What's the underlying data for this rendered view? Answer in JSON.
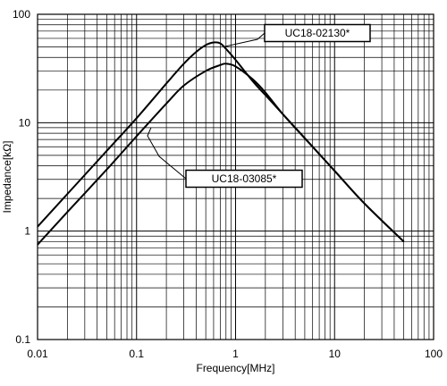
{
  "chart_data": {
    "type": "line",
    "xlabel": "Frequency[MHz]",
    "ylabel": "Impedance[kΩ]",
    "xscale": "log",
    "yscale": "log",
    "xlim": [
      0.01,
      100
    ],
    "ylim": [
      0.1,
      100
    ],
    "grid": true,
    "xticks": [
      {
        "value": 0.01,
        "label": "0.01"
      },
      {
        "value": 0.1,
        "label": "0.1"
      },
      {
        "value": 1,
        "label": "1"
      },
      {
        "value": 10,
        "label": "10"
      },
      {
        "value": 100,
        "label": "100"
      }
    ],
    "yticks": [
      {
        "value": 0.1,
        "label": "0.1"
      },
      {
        "value": 1,
        "label": "1"
      },
      {
        "value": 10,
        "label": "10"
      },
      {
        "value": 100,
        "label": "100"
      }
    ],
    "series": [
      {
        "name": "UC18-02130*",
        "x": [
          0.01,
          0.02,
          0.05,
          0.1,
          0.2,
          0.3,
          0.4,
          0.5,
          0.6,
          0.7,
          0.8,
          1,
          1.5,
          2,
          3,
          5,
          10,
          20,
          50
        ],
        "y": [
          1.1,
          2.2,
          5.5,
          11,
          23,
          35,
          45,
          52,
          55,
          54,
          48,
          38,
          24,
          18,
          12,
          7.2,
          3.6,
          1.8,
          0.8
        ]
      },
      {
        "name": "UC18-03085*",
        "x": [
          0.01,
          0.02,
          0.05,
          0.1,
          0.2,
          0.3,
          0.5,
          0.7,
          0.8,
          1,
          1.5,
          2,
          3,
          5,
          10,
          20,
          50
        ],
        "y": [
          0.75,
          1.5,
          3.7,
          7.5,
          15,
          22,
          30,
          34,
          35,
          33,
          25,
          19,
          12,
          7.2,
          3.6,
          1.8,
          0.8
        ]
      }
    ],
    "annotations": [
      {
        "text": "UC18-02130*",
        "series": 0,
        "point_x": 0.75,
        "point_y": 50
      },
      {
        "text": "UC18-03085*",
        "series": 1,
        "point_x": 0.14,
        "point_y": 9
      }
    ]
  }
}
